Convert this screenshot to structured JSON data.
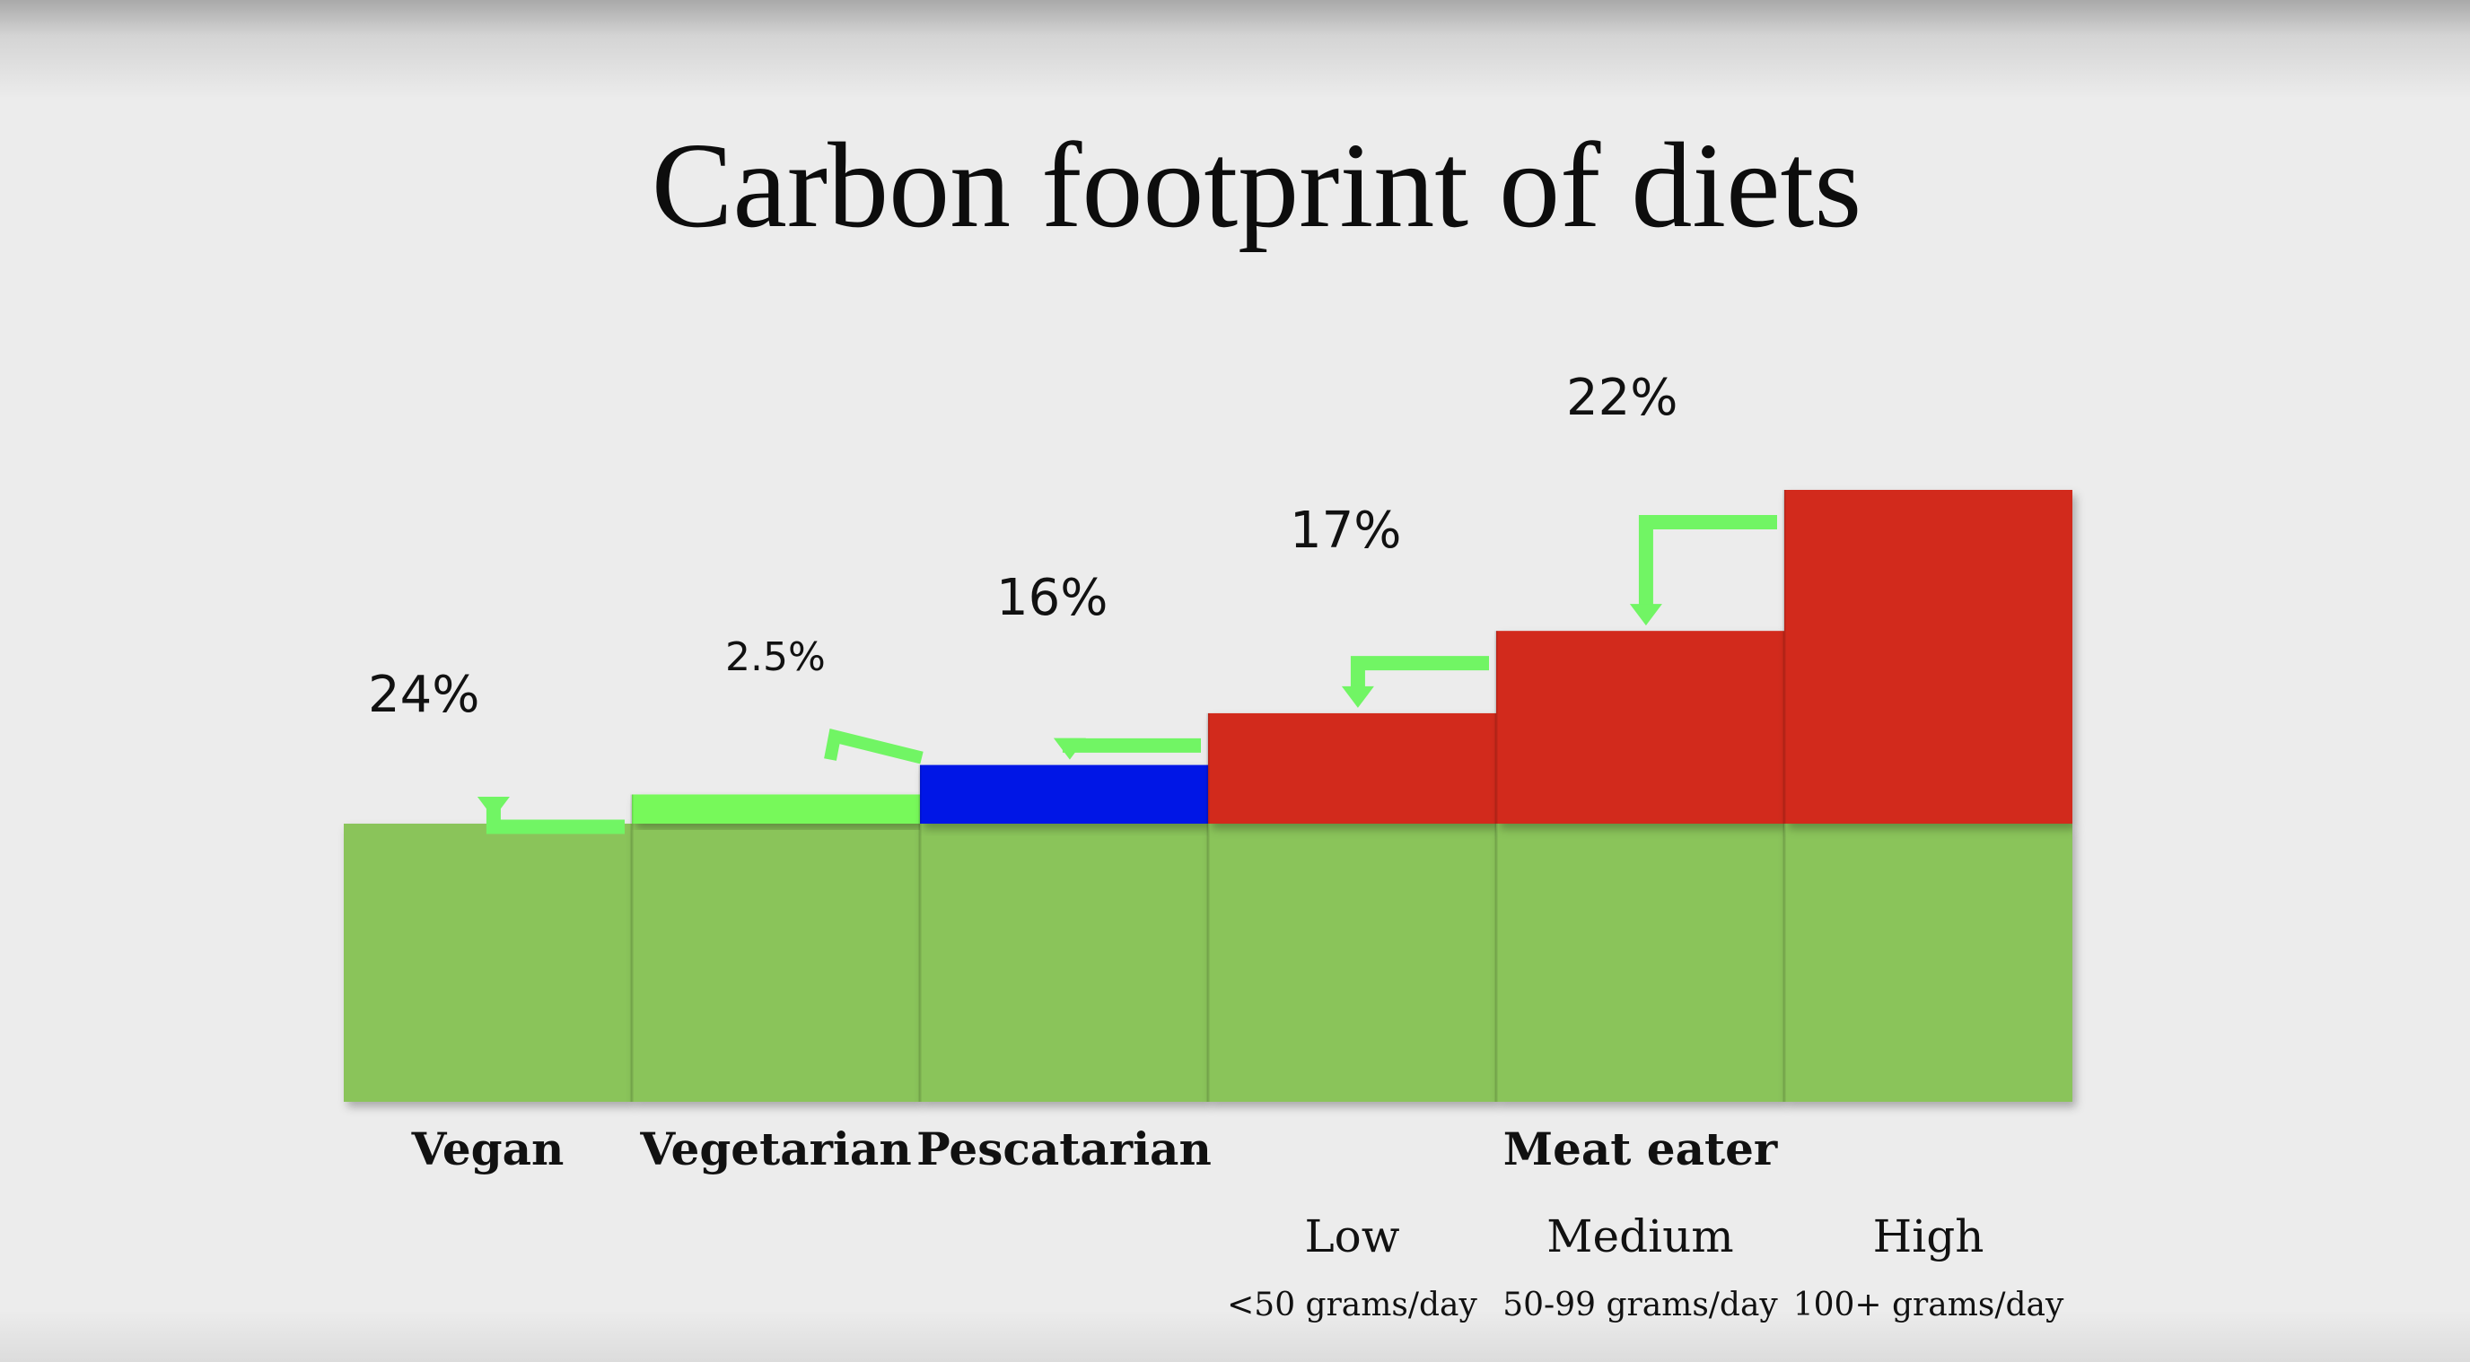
{
  "chart_data": {
    "type": "bar",
    "title": "Carbon footprint of diets",
    "xlabel": "",
    "ylabel": "",
    "categories": [
      "Vegan",
      "Vegetarian",
      "Pescatarian",
      "Low",
      "Medium",
      "High"
    ],
    "group_label": "Meat eater",
    "subcategory_ranges": [
      "<50 grams/day",
      "50-99 grams/day",
      "100+ grams/day"
    ],
    "base_value": 100,
    "stacked_values": [
      0,
      10.5,
      21.1,
      39.7,
      69.3,
      120
    ],
    "step_labels": [
      "24%",
      "2.5%",
      "16%",
      "17%",
      "22%"
    ],
    "colors": {
      "base": "#8ac45a",
      "vegetarian": "#77f95a",
      "pescatarian": "#0019e6",
      "meat": "#d22b1f",
      "arrow": "#71f564"
    }
  }
}
